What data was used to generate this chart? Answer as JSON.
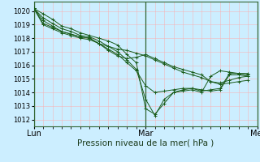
{
  "xlabel": "Pression niveau de la mer( hPa )",
  "bg_color": "#cceeff",
  "grid_color_minor": "#ffaaaa",
  "line_color": "#1a5c1a",
  "ylim": [
    1011.5,
    1020.7
  ],
  "xlim": [
    0,
    96
  ],
  "yticks": [
    1012,
    1013,
    1014,
    1015,
    1016,
    1017,
    1018,
    1019,
    1020
  ],
  "xtick_positions": [
    0,
    48,
    96
  ],
  "xtick_labels": [
    "Lun",
    "Mar",
    "Mer"
  ],
  "vline_positions": [
    0,
    48,
    96
  ],
  "series": [
    [
      0,
      1020.2,
      4,
      1019.8,
      8,
      1019.4,
      12,
      1018.9,
      16,
      1018.7,
      20,
      1018.4,
      24,
      1018.2,
      28,
      1018.0,
      32,
      1017.8,
      36,
      1017.5,
      40,
      1016.8,
      44,
      1016.2,
      48,
      1012.8,
      52,
      1012.4,
      56,
      1013.2,
      60,
      1014.0,
      64,
      1014.1,
      68,
      1014.2,
      72,
      1014.0,
      76,
      1015.2,
      80,
      1015.6,
      84,
      1015.5,
      88,
      1015.4,
      92,
      1015.4
    ],
    [
      0,
      1020.2,
      4,
      1019.5,
      8,
      1019.1,
      12,
      1018.7,
      16,
      1018.5,
      20,
      1018.2,
      24,
      1018.1,
      28,
      1017.8,
      32,
      1017.4,
      36,
      1017.0,
      40,
      1016.4,
      44,
      1015.7,
      48,
      1013.5,
      52,
      1012.3,
      56,
      1013.5,
      60,
      1014.0,
      64,
      1014.2,
      68,
      1014.3,
      72,
      1014.1,
      76,
      1014.2,
      80,
      1014.3,
      84,
      1015.4,
      88,
      1015.4,
      92,
      1015.3
    ],
    [
      0,
      1020.2,
      4,
      1019.3,
      8,
      1018.9,
      12,
      1018.5,
      16,
      1018.3,
      20,
      1018.1,
      24,
      1018.0,
      28,
      1017.6,
      32,
      1017.2,
      36,
      1016.8,
      40,
      1016.2,
      44,
      1015.6,
      48,
      1014.5,
      52,
      1014.0,
      56,
      1014.1,
      60,
      1014.2,
      64,
      1014.3,
      68,
      1014.3,
      72,
      1014.2,
      76,
      1014.1,
      80,
      1014.2,
      84,
      1015.3,
      88,
      1015.3,
      92,
      1015.2
    ],
    [
      0,
      1020.2,
      4,
      1019.1,
      8,
      1018.8,
      12,
      1018.5,
      16,
      1018.3,
      20,
      1018.1,
      24,
      1018.0,
      28,
      1017.6,
      32,
      1017.1,
      36,
      1016.7,
      40,
      1016.5,
      44,
      1016.6,
      48,
      1016.8,
      52,
      1016.5,
      56,
      1016.2,
      60,
      1015.9,
      64,
      1015.7,
      68,
      1015.5,
      72,
      1015.3,
      76,
      1014.8,
      80,
      1014.7,
      84,
      1014.9,
      88,
      1015.1,
      92,
      1015.2
    ],
    [
      0,
      1020.2,
      4,
      1019.0,
      8,
      1018.7,
      12,
      1018.4,
      16,
      1018.2,
      20,
      1018.0,
      24,
      1017.9,
      28,
      1017.6,
      32,
      1017.4,
      36,
      1017.2,
      40,
      1017.1,
      44,
      1016.9,
      48,
      1016.7,
      52,
      1016.4,
      56,
      1016.1,
      60,
      1015.8,
      64,
      1015.5,
      68,
      1015.3,
      72,
      1015.1,
      76,
      1014.8,
      80,
      1014.6,
      84,
      1014.7,
      88,
      1014.8,
      92,
      1014.9
    ]
  ]
}
